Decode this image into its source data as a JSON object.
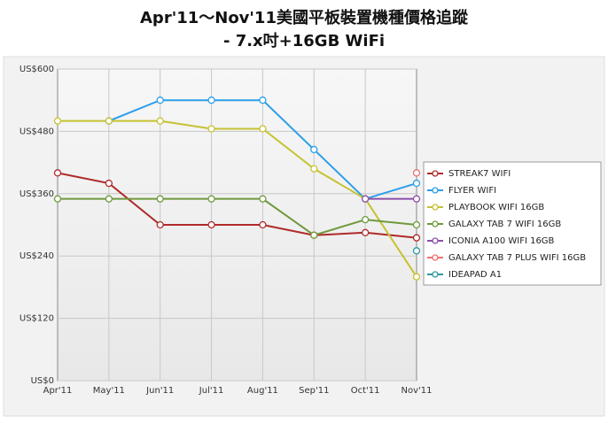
{
  "chart_data": {
    "type": "line",
    "title": "Apr'11～Nov'11美國平板裝置機種價格追蹤",
    "subtitle": "- 7.x吋+16GB WiFi",
    "categories": [
      "Apr'11",
      "May'11",
      "Jun'11",
      "Jul'11",
      "Aug'11",
      "Sep'11",
      "Oct'11",
      "Nov'11"
    ],
    "ylim": [
      0,
      600
    ],
    "yticks": [
      {
        "value": 0,
        "label": "US$0"
      },
      {
        "value": 120,
        "label": "US$120"
      },
      {
        "value": 240,
        "label": "US$240"
      },
      {
        "value": 360,
        "label": "US$360"
      },
      {
        "value": 480,
        "label": "US$480"
      },
      {
        "value": 600,
        "label": "US$600"
      }
    ],
    "grid": true,
    "legend": "right",
    "series": [
      {
        "name": "STREAK7 WIFI",
        "color": "#b02a2a",
        "values": [
          400,
          380,
          300,
          300,
          300,
          280,
          285,
          275
        ]
      },
      {
        "name": "FLYER WIFI",
        "color": "#2c9ee8",
        "values": [
          null,
          500,
          540,
          540,
          540,
          445,
          350,
          380
        ]
      },
      {
        "name": "PLAYBOOK WIFI 16GB",
        "color": "#c6c233",
        "values": [
          500,
          500,
          500,
          485,
          485,
          408,
          350,
          200
        ]
      },
      {
        "name": "GALAXY TAB 7 WIFI 16GB",
        "color": "#6f9a3c",
        "values": [
          350,
          350,
          350,
          350,
          350,
          280,
          310,
          300
        ]
      },
      {
        "name": "ICONIA A100 WIFI 16GB",
        "color": "#8b4fa8",
        "values": [
          null,
          null,
          null,
          null,
          null,
          null,
          350,
          350
        ]
      },
      {
        "name": "GALAXY TAB 7 PLUS WIFI 16GB",
        "color": "#ef6f6f",
        "values": [
          null,
          null,
          null,
          null,
          null,
          null,
          null,
          400
        ]
      },
      {
        "name": "IDEAPAD A1",
        "color": "#2a9aa0",
        "values": [
          null,
          null,
          null,
          null,
          null,
          null,
          null,
          250
        ]
      }
    ]
  }
}
